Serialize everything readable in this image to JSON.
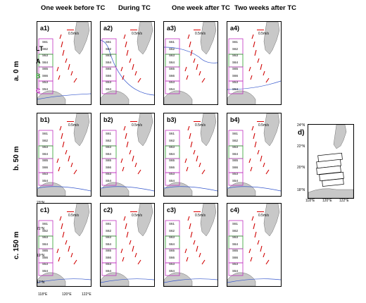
{
  "columns": [
    "One week before TC",
    "During TC",
    "One week after TC",
    "Two weeks after TC"
  ],
  "rows": [
    "a. 0 m",
    "b. 50 m",
    "c. 150 m"
  ],
  "panels": {
    "r0": [
      "a1)",
      "a2)",
      "a3)",
      "a4)"
    ],
    "r1": [
      "b1)",
      "b2)",
      "b3)",
      "b4)"
    ],
    "r2": [
      "c1)",
      "c2)",
      "c3)",
      "c4)"
    ]
  },
  "scale": "0.5m/s",
  "lt": "LT",
  "groups": [
    "A",
    "B",
    "C"
  ],
  "stations": [
    "S61",
    "S62",
    "S63",
    "S64",
    "S65",
    "S66",
    "S53",
    "S54"
  ],
  "bottom_axis": [
    "118°E",
    "120°E",
    "122°E"
  ],
  "left_axis": [
    "23°N",
    "21°N",
    "19°N",
    "17°N"
  ],
  "d_panel": {
    "label": "d)",
    "left_axis": [
      "24°N",
      "22°N",
      "20°N",
      "18°N"
    ],
    "bottom_axis": [
      "118°E",
      "120°E",
      "122°E"
    ]
  },
  "colors": {
    "arrow": "#d00000",
    "green": "#2a9d2a",
    "magenta": "#c030c0",
    "blue": "#3355cc",
    "land": "#c8c8c8"
  }
}
